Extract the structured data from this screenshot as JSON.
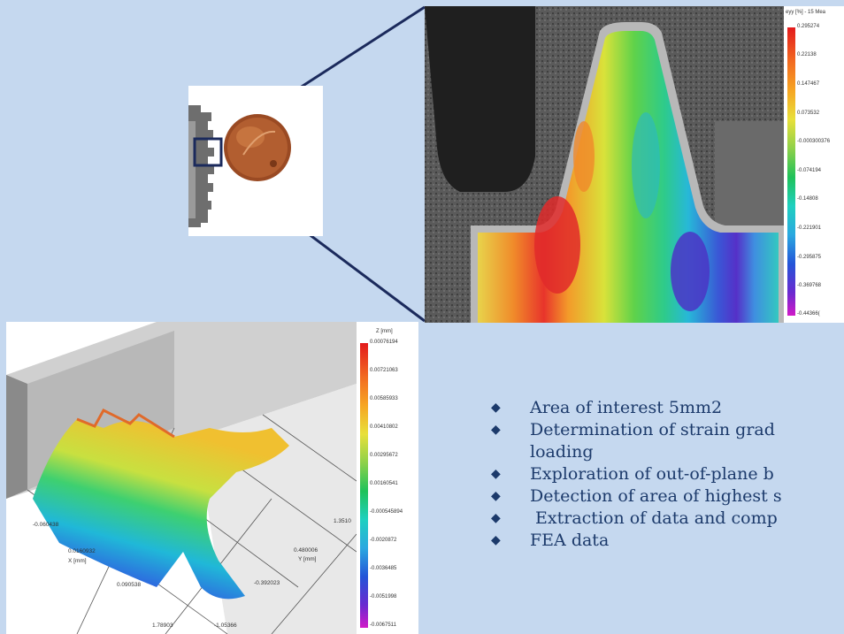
{
  "strain_legend": {
    "title": "eyy [%] - 15 Mea",
    "ticks": [
      "0.295274",
      "0.22138",
      "0.147467",
      "0.073532",
      "-0.000300376",
      "-0.074194",
      "-0.14808",
      "-0.221901",
      "-0.295875",
      "-0.369768",
      "-0.44366("
    ]
  },
  "plot_legend": {
    "title": "Z [mm]",
    "ticks": [
      "0.00076194",
      "0.00721063",
      "0.00585933",
      "0.00410802",
      "0.00295672",
      "0.00160541",
      "-0.000545894",
      "-0.0020872",
      "-0.0036485",
      "-0.0051998",
      "-0.0067511"
    ]
  },
  "plot_axes": {
    "x_tick1": "-0.060438",
    "x_tick2": "0.0160932",
    "x_label": "X [mm]",
    "x_tick3": "0.090538",
    "x_tick4": "1.78903",
    "y_tick1": "1.3510",
    "y_tick2": "0.480006",
    "y_label": "Y [mm]",
    "y_tick3": "-0.392023",
    "y_tick4": "-1.05366"
  },
  "bullets": [
    {
      "text": "Area of interest 5mm2"
    },
    {
      "text": "Determination of strain grad",
      "cont": "loading"
    },
    {
      "text": "Exploration of out-of-plane b"
    },
    {
      "text": "Detection of area of highest s"
    },
    {
      "text": " Extraction of data and comp"
    },
    {
      "text": "FEA data"
    }
  ],
  "colors": {
    "background": "#c5d8ef",
    "text": "#1c3a6b",
    "connector": "#1b2a5c"
  }
}
